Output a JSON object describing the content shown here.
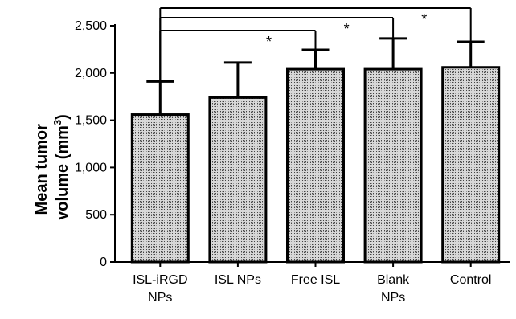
{
  "chart_data": {
    "type": "bar",
    "categories": [
      [
        "ISL-iRGD",
        "NPs"
      ],
      [
        "ISL NPs"
      ],
      [
        "Free ISL"
      ],
      [
        "Blank",
        "NPs"
      ],
      [
        "Control"
      ]
    ],
    "values": [
      1560,
      1740,
      2040,
      2040,
      2060
    ],
    "errors": [
      350,
      370,
      205,
      325,
      270
    ],
    "ylabel": [
      "Mean tumor",
      "volume (mm",
      "3",
      ")"
    ],
    "ylim": [
      0,
      2500
    ],
    "yticks": [
      0,
      500,
      1000,
      1500,
      2000,
      2500
    ],
    "ytick_labels": [
      "0",
      "500",
      "1,000",
      "1,500",
      "2,000",
      "2,500"
    ],
    "bar_pattern": "crosshatch",
    "significance": [
      {
        "from": 0,
        "to": 4,
        "label": "*"
      },
      {
        "from": 0,
        "to": 3,
        "label": "*"
      },
      {
        "from": 0,
        "to": 2,
        "label": "*"
      }
    ]
  }
}
